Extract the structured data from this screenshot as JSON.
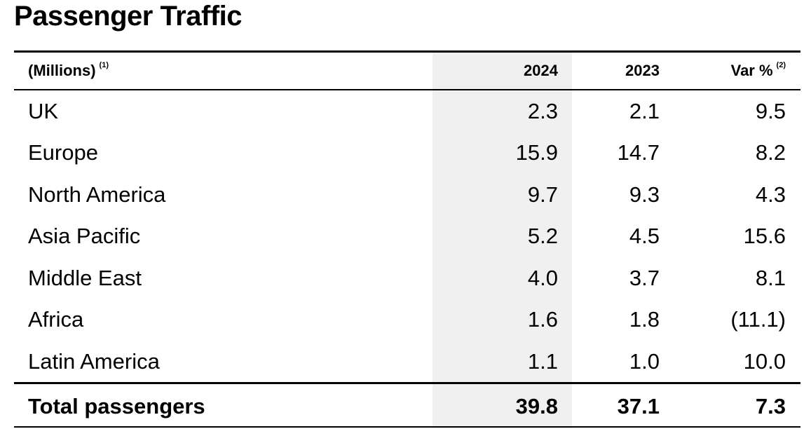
{
  "title": "Passenger Traffic",
  "header": {
    "label": "(Millions)",
    "label_note": "(1)",
    "col_2024": "2024",
    "col_2023": "2023",
    "col_var": "Var %",
    "var_note": "(2)"
  },
  "rows": [
    {
      "region": "UK",
      "y2024": "2.3",
      "y2023": "2.1",
      "var": "9.5"
    },
    {
      "region": "Europe",
      "y2024": "15.9",
      "y2023": "14.7",
      "var": "8.2"
    },
    {
      "region": "North America",
      "y2024": "9.7",
      "y2023": "9.3",
      "var": "4.3"
    },
    {
      "region": "Asia Pacific",
      "y2024": "5.2",
      "y2023": "4.5",
      "var": "15.6"
    },
    {
      "region": "Middle East",
      "y2024": "4.0",
      "y2023": "3.7",
      "var": "8.1"
    },
    {
      "region": "Africa",
      "y2024": "1.6",
      "y2023": "1.8",
      "var": "(11.1)"
    },
    {
      "region": "Latin America",
      "y2024": "1.1",
      "y2023": "1.0",
      "var": "10.0"
    }
  ],
  "total": {
    "label": "Total passengers",
    "y2024": "39.8",
    "y2023": "37.1",
    "var": "7.3"
  }
}
